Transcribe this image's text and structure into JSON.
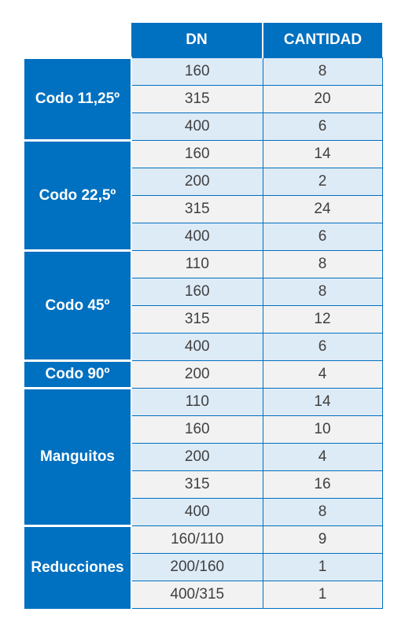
{
  "header": {
    "dn_label": "DN",
    "quantity_label": "CANTIDAD"
  },
  "groups": [
    {
      "category": "Codo 11,25º",
      "rows": [
        {
          "dn": "160",
          "qty": "8"
        },
        {
          "dn": "315",
          "qty": "20"
        },
        {
          "dn": "400",
          "qty": "6"
        }
      ]
    },
    {
      "category": "Codo 22,5º",
      "rows": [
        {
          "dn": "160",
          "qty": "14"
        },
        {
          "dn": "200",
          "qty": "2"
        },
        {
          "dn": "315",
          "qty": "24"
        },
        {
          "dn": "400",
          "qty": "6"
        }
      ]
    },
    {
      "category": "Codo 45º",
      "rows": [
        {
          "dn": "110",
          "qty": "8"
        },
        {
          "dn": "160",
          "qty": "8"
        },
        {
          "dn": "315",
          "qty": "12"
        },
        {
          "dn": "400",
          "qty": "6"
        }
      ]
    },
    {
      "category": "Codo 90º",
      "rows": [
        {
          "dn": "200",
          "qty": "4"
        }
      ]
    },
    {
      "category": "Manguitos",
      "rows": [
        {
          "dn": "110",
          "qty": "14"
        },
        {
          "dn": "160",
          "qty": "10"
        },
        {
          "dn": "200",
          "qty": "4"
        },
        {
          "dn": "315",
          "qty": "16"
        },
        {
          "dn": "400",
          "qty": "8"
        }
      ]
    },
    {
      "category": "Reducciones",
      "rows": [
        {
          "dn": "160/110",
          "qty": "9"
        },
        {
          "dn": "200/160",
          "qty": "1"
        },
        {
          "dn": "400/315",
          "qty": "1"
        }
      ]
    }
  ],
  "colors": {
    "header_blue": "#0070c0",
    "row_light_blue": "#ddebf7",
    "row_light_grey": "#f2f2f2",
    "text": "#404040"
  }
}
